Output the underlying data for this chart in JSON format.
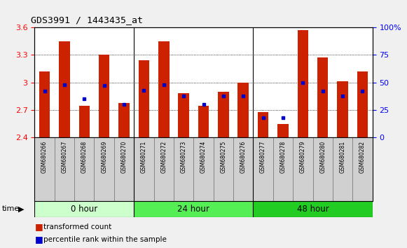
{
  "title": "GDS3991 / 1443435_at",
  "samples": [
    "GSM680266",
    "GSM680267",
    "GSM680268",
    "GSM680269",
    "GSM680270",
    "GSM680271",
    "GSM680272",
    "GSM680273",
    "GSM680274",
    "GSM680275",
    "GSM680276",
    "GSM680277",
    "GSM680278",
    "GSM680279",
    "GSM680280",
    "GSM680281",
    "GSM680282"
  ],
  "red_values": [
    3.12,
    3.45,
    2.75,
    3.3,
    2.78,
    3.24,
    3.45,
    2.88,
    2.75,
    2.9,
    3.0,
    2.68,
    2.55,
    3.57,
    3.27,
    3.01,
    3.12
  ],
  "blue_values": [
    0.42,
    0.48,
    0.35,
    0.47,
    0.3,
    0.43,
    0.48,
    0.38,
    0.3,
    0.38,
    0.38,
    0.18,
    0.18,
    0.5,
    0.42,
    0.38,
    0.42
  ],
  "groups": [
    {
      "label": "0 hour",
      "start": 0,
      "end": 5,
      "color": "#ccffcc"
    },
    {
      "label": "24 hour",
      "start": 5,
      "end": 11,
      "color": "#55ee55"
    },
    {
      "label": "48 hour",
      "start": 11,
      "end": 17,
      "color": "#22cc22"
    }
  ],
  "ylim_left": [
    2.4,
    3.6
  ],
  "ylim_right": [
    0,
    100
  ],
  "yticks_left": [
    2.4,
    2.7,
    3.0,
    3.3,
    3.6
  ],
  "yticks_right": [
    0,
    25,
    50,
    75,
    100
  ],
  "bar_color": "#cc2200",
  "dot_color": "#0000cc",
  "plot_bg": "#ffffff",
  "fig_bg": "#f0f0f0",
  "label_bg": "#d0d0d0",
  "base_value": 2.4,
  "figsize": [
    5.81,
    3.54
  ],
  "dpi": 100
}
